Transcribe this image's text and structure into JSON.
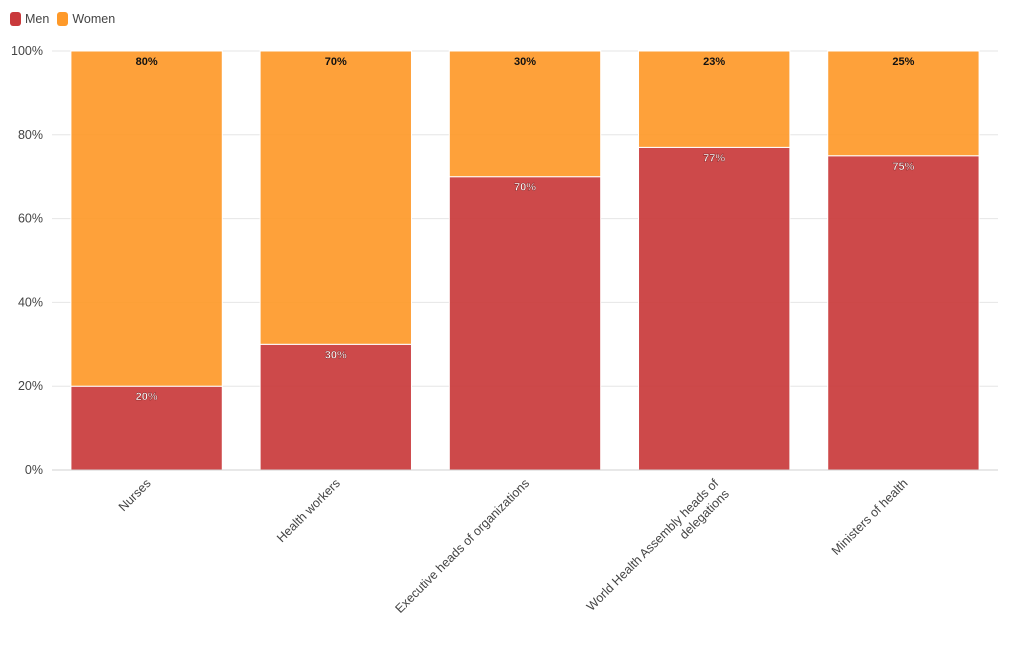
{
  "chart_data": {
    "type": "bar",
    "stacked": true,
    "categories": [
      "Nurses",
      "Health workers",
      "Executive heads of organizations",
      "World Health Assembly heads of delegations",
      "Ministers of health"
    ],
    "series": [
      {
        "name": "Men",
        "color": "#c9393b",
        "values": [
          20,
          30,
          70,
          77,
          75
        ]
      },
      {
        "name": "Women",
        "color": "#fe9929",
        "values": [
          80,
          70,
          30,
          23,
          25
        ]
      }
    ],
    "y_ticks": [
      "0%",
      "20%",
      "40%",
      "60%",
      "80%",
      "100%"
    ],
    "ylim": [
      0,
      100
    ],
    "value_suffix": "%",
    "grid": true,
    "legend_position": "top-left"
  }
}
